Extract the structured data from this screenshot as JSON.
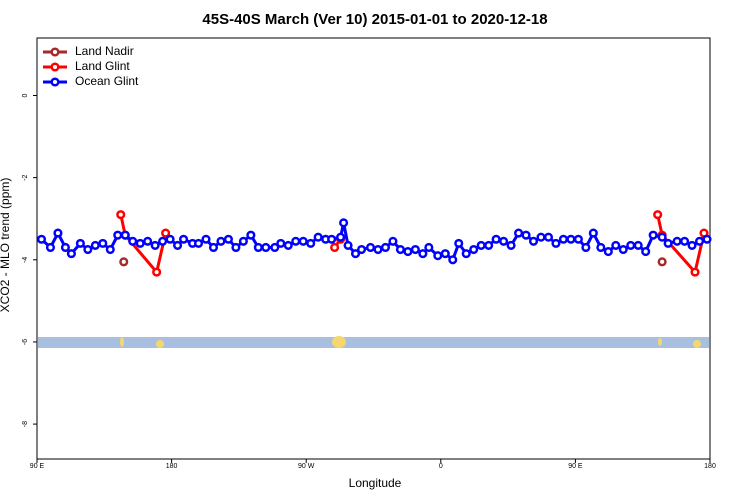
{
  "chart_data": {
    "type": "line",
    "title": "45S-40S March (Ver 10)   2015-01-01 to 2020-12-18",
    "x_label": "Longitude",
    "y_label": "XCO2 - MLO trend (ppm)",
    "xlim": [
      90,
      540
    ],
    "ylim": [
      -8.85,
      1.4
    ],
    "xticks": [
      {
        "value": 90,
        "label": "90 E"
      },
      {
        "value": 180,
        "label": "180"
      },
      {
        "value": 270,
        "label": "90 W"
      },
      {
        "value": 360,
        "label": "0"
      },
      {
        "value": 450,
        "label": "90 E"
      },
      {
        "value": 540,
        "label": "180"
      }
    ],
    "yticks": [
      0,
      -2,
      -4,
      -6,
      -8
    ],
    "legend": "top-left",
    "series": [
      {
        "name": "Land Nadir",
        "color": "#a52a2a",
        "x": [
          148,
          300,
          508
        ],
        "values": [
          -4.05,
          null,
          -4.05
        ]
      },
      {
        "name": "Land Glint",
        "color": "#ff0000",
        "x": [
          146,
          149,
          170,
          176,
          230,
          289,
          293,
          400,
          505,
          508,
          530,
          536
        ],
        "values": [
          -2.9,
          -3.4,
          -4.3,
          -3.35,
          null,
          -3.7,
          -3.5,
          null,
          -2.9,
          -3.4,
          -4.3,
          -3.35
        ]
      },
      {
        "name": "Ocean Glint",
        "color": "#0000ff",
        "x": [
          93,
          99,
          104,
          109,
          113,
          119,
          124,
          129,
          134,
          139,
          144,
          149,
          154,
          159,
          164,
          169,
          174,
          179,
          184,
          188,
          194,
          198,
          203,
          208,
          213,
          218,
          223,
          228,
          233,
          238,
          243,
          249,
          253,
          258,
          263,
          268,
          273,
          278,
          283,
          287,
          293,
          295,
          298,
          303,
          307,
          313,
          318,
          323,
          328,
          333,
          338,
          343,
          348,
          352,
          358,
          363,
          368,
          372,
          377,
          382,
          387,
          392,
          397,
          402,
          407,
          412,
          417,
          422,
          427,
          432,
          437,
          442,
          447,
          452,
          457,
          462,
          467,
          472,
          477,
          482,
          487,
          492,
          497,
          502,
          508,
          512,
          518,
          523,
          528,
          533,
          538
        ],
        "values": [
          -3.5,
          -3.7,
          -3.35,
          -3.7,
          -3.85,
          -3.6,
          -3.75,
          -3.65,
          -3.6,
          -3.75,
          -3.4,
          -3.4,
          -3.55,
          -3.6,
          -3.55,
          -3.65,
          -3.55,
          -3.5,
          -3.65,
          -3.5,
          -3.6,
          -3.6,
          -3.5,
          -3.7,
          -3.55,
          -3.5,
          -3.7,
          -3.55,
          -3.4,
          -3.7,
          -3.7,
          -3.7,
          -3.6,
          -3.65,
          -3.55,
          -3.55,
          -3.6,
          -3.45,
          -3.5,
          -3.5,
          -3.45,
          -3.1,
          -3.65,
          -3.85,
          -3.75,
          -3.7,
          -3.75,
          -3.7,
          -3.55,
          -3.75,
          -3.8,
          -3.75,
          -3.85,
          -3.7,
          -3.9,
          -3.85,
          -4.0,
          -3.6,
          -3.85,
          -3.75,
          -3.65,
          -3.65,
          -3.5,
          -3.55,
          -3.65,
          -3.35,
          -3.4,
          -3.55,
          -3.45,
          -3.45,
          -3.6,
          -3.5,
          -3.5,
          -3.5,
          -3.7,
          -3.35,
          -3.7,
          -3.8,
          -3.65,
          -3.75,
          -3.65,
          -3.65,
          -3.8,
          -3.4,
          -3.45,
          -3.6,
          -3.55,
          -3.55,
          -3.65,
          -3.55,
          -3.5
        ]
      }
    ]
  }
}
